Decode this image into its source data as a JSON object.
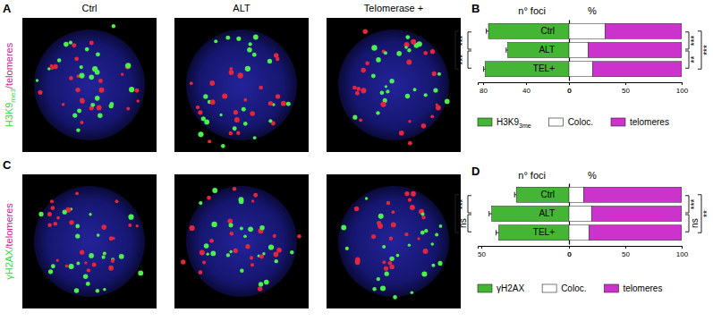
{
  "images": [
    {
      "letter": "A",
      "column_titles": [
        "Ctrl",
        "ALT",
        "Telomerase +"
      ],
      "label_parts": [
        {
          "text": "H3K9",
          "color": "#3fd13f"
        },
        {
          "text": "me3",
          "color": "#3fd13f",
          "subscript": true
        },
        {
          "text": "/telomeres",
          "color": "#c8238f"
        }
      ]
    },
    {
      "letter": "C",
      "label_parts": [
        {
          "text": "γH2AX",
          "color": "#3fd13f"
        },
        {
          "text": "/telomeres",
          "color": "#c8238f"
        }
      ]
    }
  ],
  "chart_data": [
    {
      "type": "bar",
      "panel": "B",
      "orientation": "horizontal",
      "title": "n° foci",
      "categories": [
        "Ctrl",
        "ALT",
        "TEL+"
      ],
      "series": [
        {
          "name": "H3K9",
          "name_subscript": "3me",
          "color": "#45b535",
          "values": [
            75,
            57,
            78
          ],
          "errors": [
            2,
            1.5,
            1.5
          ]
        }
      ],
      "xlim": [
        85,
        0
      ],
      "xticks": [
        80,
        40,
        0
      ],
      "annotations": [
        {
          "text": "***",
          "between": [
            "Ctrl",
            "ALT"
          ]
        },
        {
          "text": "***",
          "between": [
            "ALT",
            "TEL+"
          ]
        },
        {
          "text": "*",
          "between": [
            "Ctrl",
            "TEL+"
          ]
        }
      ]
    },
    {
      "type": "bar",
      "panel": "B",
      "orientation": "horizontal",
      "stacked": true,
      "title": "%",
      "categories": [
        "Ctrl",
        "ALT",
        "TEL+"
      ],
      "series": [
        {
          "name": "Coloc.",
          "color": "#ffffff",
          "values": [
            32,
            17,
            21
          ]
        },
        {
          "name": "telomeres",
          "color": "#cc33cc",
          "values": [
            68,
            83,
            79
          ]
        }
      ],
      "xlim": [
        0,
        100
      ],
      "xticks": [
        0,
        50,
        100
      ],
      "annotations": [
        {
          "text": "***",
          "between": [
            "Ctrl",
            "ALT"
          ]
        },
        {
          "text": "**",
          "between": [
            "ALT",
            "TEL+"
          ]
        },
        {
          "text": "***",
          "between": [
            "Ctrl",
            "TEL+"
          ]
        }
      ]
    },
    {
      "type": "bar",
      "panel": "D",
      "orientation": "horizontal",
      "title": "n° foci",
      "categories": [
        "Ctrl",
        "ALT",
        "TEL+"
      ],
      "series": [
        {
          "name": "γH2AX",
          "color": "#45b535",
          "values": [
            30,
            44,
            40
          ],
          "errors": [
            1,
            1.5,
            1.5
          ]
        }
      ],
      "xlim": [
        52,
        0
      ],
      "xticks": [
        50,
        0
      ],
      "annotations": [
        {
          "text": "***",
          "between": [
            "Ctrl",
            "ALT"
          ]
        },
        {
          "text": "ns",
          "between": [
            "ALT",
            "TEL+"
          ]
        },
        {
          "text": "**",
          "between": [
            "Ctrl",
            "TEL+"
          ]
        }
      ]
    },
    {
      "type": "bar",
      "panel": "D",
      "orientation": "horizontal",
      "stacked": true,
      "title": "%",
      "categories": [
        "Ctrl",
        "ALT",
        "TEL+"
      ],
      "series": [
        {
          "name": "Coloc.",
          "color": "#ffffff",
          "values": [
            13,
            20,
            18
          ]
        },
        {
          "name": "telomeres",
          "color": "#cc33cc",
          "values": [
            87,
            80,
            82
          ]
        }
      ],
      "xlim": [
        0,
        100
      ],
      "xticks": [
        0,
        50,
        100
      ],
      "annotations": [
        {
          "text": "***",
          "between": [
            "Ctrl",
            "ALT"
          ]
        },
        {
          "text": "ns",
          "between": [
            "ALT",
            "TEL+"
          ]
        },
        {
          "text": "**",
          "between": [
            "Ctrl",
            "TEL+"
          ]
        }
      ]
    }
  ]
}
